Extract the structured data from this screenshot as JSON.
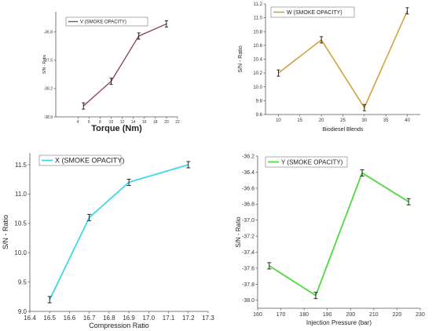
{
  "chart_data": [
    {
      "type": "line",
      "xlabel": "Torque (Nm)",
      "ylabel": "S/N - Ratio",
      "legend": "V (SMOKE OPACITY)",
      "color": "#8B4A6B",
      "xlim": [
        0,
        22
      ],
      "ylim": [
        -38.9,
        -36.3
      ],
      "xticks": [
        4,
        6,
        8,
        10,
        12,
        14,
        16,
        18,
        20,
        22
      ],
      "yticks": [
        -38.9,
        -38.2,
        -37.5,
        -36.8
      ],
      "ytick_labels": [
        "-38.9",
        "-38.2",
        "-37.5",
        "-36.8"
      ],
      "x": [
        5,
        10,
        15,
        20
      ],
      "y": [
        -38.63,
        -38.02,
        -36.9,
        -36.6
      ],
      "grid": false,
      "legend_position": "top-left"
    },
    {
      "type": "line",
      "xlabel": "Biodiesel Blends",
      "ylabel": "S/N - Ratio",
      "legend": "W (SMOKE OPACITY)",
      "color": "#D4A040",
      "xlim": [
        7,
        43
      ],
      "ylim": [
        9.6,
        11.2
      ],
      "xticks": [
        10,
        15,
        20,
        25,
        30,
        35,
        40
      ],
      "yticks": [
        9.6,
        9.8,
        10.0,
        10.2,
        10.4,
        10.6,
        10.8,
        11.0,
        11.2
      ],
      "ytick_labels": [
        "9.6",
        "9.8",
        "10.0",
        "10.2",
        "10.4",
        "10.6",
        "10.8",
        "11.0",
        "11.2"
      ],
      "x": [
        10,
        20,
        30,
        40
      ],
      "y": [
        10.2,
        10.68,
        9.7,
        11.1
      ],
      "grid": false,
      "legend_position": "top-left"
    },
    {
      "type": "line",
      "xlabel": "Compression Ratio",
      "ylabel": "S/N - Ratio",
      "legend": "X (SMOKE OPACITY)",
      "color": "#40D8E8",
      "xlim": [
        16.4,
        17.3
      ],
      "ylim": [
        9.0,
        11.7
      ],
      "xticks": [
        16.4,
        16.5,
        16.6,
        16.7,
        16.8,
        16.9,
        17.0,
        17.1,
        17.2,
        17.3
      ],
      "yticks": [
        9.0,
        9.5,
        10.0,
        10.5,
        11.0,
        11.5
      ],
      "ytick_labels": [
        "9.0",
        "9.5",
        "10.0",
        "10.5",
        "11.0",
        "11.5"
      ],
      "x": [
        16.5,
        16.7,
        16.9,
        17.2
      ],
      "y": [
        9.2,
        10.6,
        11.2,
        11.5
      ],
      "grid": false,
      "legend_position": "top-left"
    },
    {
      "type": "line",
      "xlabel": "Injection Pressure (bar)",
      "ylabel": "S/N - Ratio",
      "legend": "Y (SMOKE OPACITY)",
      "color": "#50D840",
      "xlim": [
        160,
        230
      ],
      "ylim": [
        -38.1,
        -36.2
      ],
      "xticks": [
        160,
        170,
        180,
        190,
        200,
        210,
        220,
        230
      ],
      "yticks": [
        -38.0,
        -37.8,
        -37.6,
        -37.4,
        -37.2,
        -37.0,
        -36.8,
        -36.6,
        -36.4,
        -36.2
      ],
      "ytick_labels": [
        "-38.0",
        "-37.8",
        "-37.6",
        "-37.4",
        "-37.2",
        "-37.0",
        "-36.8",
        "-36.6",
        "-36.4",
        "-36.2"
      ],
      "x": [
        165,
        185,
        205,
        225
      ],
      "y": [
        -37.57,
        -37.94,
        -36.41,
        -36.77
      ],
      "grid": false,
      "legend_position": "top-left"
    }
  ]
}
